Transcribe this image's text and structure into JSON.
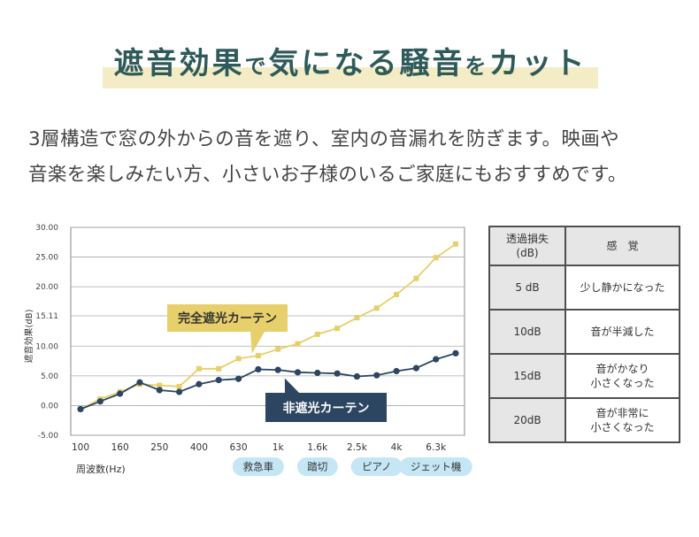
{
  "headline": {
    "before": "遮音効果",
    "particle1": "で",
    "middle": "気になる騒音",
    "particle2": "を",
    "after": "カット"
  },
  "intro": {
    "line1": "3層構造で窓の外からの音を遮り、室内の音漏れを防ぎます。映画や",
    "line2": "音楽を楽しみたい方、小さいお子様のいるご家庭にもおすすめです。"
  },
  "colors": {
    "headline": "#2e5a5a",
    "highlight": "#f3ecc4",
    "yellow_series": "#e7cf6c",
    "navy_series": "#2c4561",
    "badge_bg": "#c5e6f4",
    "axis": "#888888",
    "grid": "#aaaaaa"
  },
  "chart_data": {
    "type": "line",
    "xlabel": "周波数(Hz)",
    "ylabel": "遮音効果(dB)",
    "ylim": [
      -5,
      30
    ],
    "y_ticks": [
      "30.00",
      "25.00",
      "20.00",
      "15.11",
      "10.00",
      "5.00",
      "0.00",
      "-5.00"
    ],
    "y_tick_values": [
      30,
      25,
      20,
      15.11,
      10,
      5,
      0,
      -5
    ],
    "grid": true,
    "x_points": [
      "100",
      "125",
      "160",
      "200",
      "250",
      "315",
      "400",
      "500",
      "630",
      "800",
      "1k",
      "1.25k",
      "1.6k",
      "2k",
      "2.5k",
      "3.15k",
      "4k",
      "5k",
      "6.3k",
      "8k"
    ],
    "x_tick_labels": [
      "100",
      "160",
      "250",
      "400",
      "630",
      "1k",
      "1.6k",
      "2.5k",
      "4k",
      "6.3k"
    ],
    "series": [
      {
        "name": "完全遮光カーテン",
        "color": "#e7cf6c",
        "marker": "square",
        "values": [
          -0.6,
          1.1,
          2.3,
          3.6,
          3.4,
          3.2,
          6.2,
          6.2,
          7.9,
          8.4,
          9.5,
          10.4,
          12.0,
          13.0,
          14.8,
          16.4,
          18.7,
          21.4,
          24.9,
          27.2
        ]
      },
      {
        "name": "非遮光カーテン",
        "color": "#2c4561",
        "marker": "circle",
        "values": [
          -0.6,
          0.7,
          2.0,
          3.9,
          2.6,
          2.3,
          3.6,
          4.3,
          4.5,
          6.1,
          6.0,
          5.6,
          5.5,
          5.4,
          4.9,
          5.1,
          5.8,
          6.3,
          7.8,
          8.8
        ]
      }
    ],
    "annotations": [
      {
        "text": "完全遮光カーテン",
        "series": 0
      },
      {
        "text": "非遮光カーテン",
        "series": 1
      }
    ],
    "noise_examples": [
      {
        "label": "救急車",
        "at": "800"
      },
      {
        "label": "踏切",
        "at": "1.6k"
      },
      {
        "label": "ピアノ",
        "at": "3.15k"
      },
      {
        "label": "ジェット機",
        "at": "6.3k"
      }
    ]
  },
  "table": {
    "header_left": "透過損失\n(dB)",
    "header_right": "感　覚",
    "rows": [
      {
        "db": "5 dB",
        "feel": "少し静かになった"
      },
      {
        "db": "10dB",
        "feel": "音が半減した"
      },
      {
        "db": "15dB",
        "feel": "音がかなり\n小さくなった"
      },
      {
        "db": "20dB",
        "feel": "音が非常に\n小さくなった"
      }
    ]
  }
}
